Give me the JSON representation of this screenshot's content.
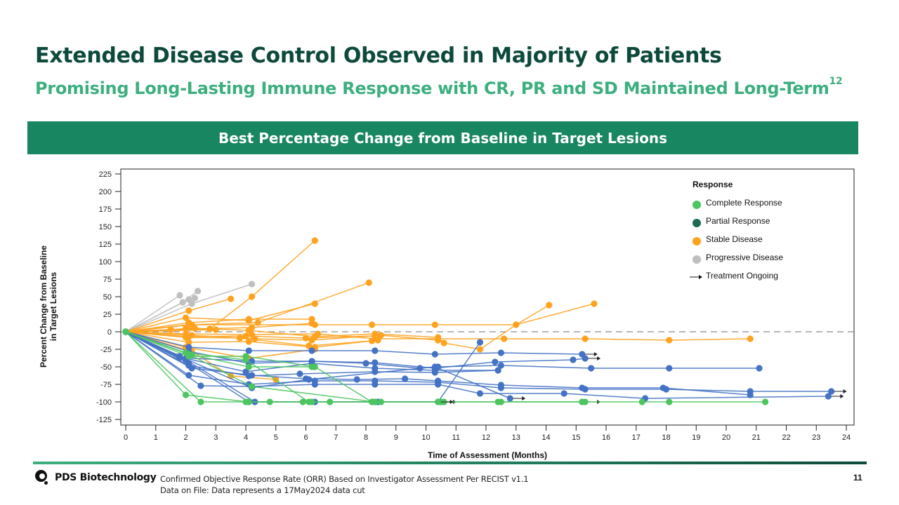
{
  "slide": {
    "title": "Extended Disease Control Observed in Majority of Patients",
    "subtitle": "Promising Long-Lasting Immune Response with CR, PR and SD Maintained Long-Term",
    "subtitle_superscript": "12",
    "banner": "Best Percentage Change from Baseline in Target Lesions",
    "footnote_1": "Confirmed Objective Response Rate (ORR) Based on Investigator Assessment Per RECIST v1.1",
    "footnote_2": "Data on File: Data represents  a 17May2024 data cut",
    "logo_text": "PDS Biotechnology",
    "page_number": "11"
  },
  "colors": {
    "title": "#0d4a3c",
    "subtitle": "#3daf7f",
    "banner": "#188660",
    "complete_response": "#4cc560",
    "partial_response": "#4472c4",
    "partial_response_legend": "#1e6b55",
    "stable_disease": "#ffa21f",
    "progressive_disease": "#bfbfbf",
    "ongoing_arrow": "#222222"
  },
  "chart_data": {
    "type": "line",
    "title": "Best Percentage Change from Baseline in Target Lesions",
    "xlabel": "Time of Assessment  (Months)",
    "ylabel": "Percent Change from Baseline in Target Lesions",
    "xlim": [
      0,
      24
    ],
    "ylim": [
      -125,
      225
    ],
    "xticks": [
      0,
      1,
      2,
      3,
      4,
      5,
      6,
      7,
      8,
      9,
      10,
      11,
      12,
      13,
      14,
      15,
      16,
      17,
      18,
      19,
      20,
      21,
      22,
      23,
      24
    ],
    "yticks": [
      225,
      200,
      175,
      150,
      125,
      100,
      75,
      50,
      25,
      0,
      -25,
      -50,
      -75,
      -100,
      -125
    ],
    "reference_line": {
      "y": 0,
      "style": "dashed"
    },
    "legend": {
      "title": "Response",
      "position": "top-right",
      "entries": [
        {
          "label": "Complete Response",
          "category": "CR"
        },
        {
          "label": "Partial Response",
          "category": "PR"
        },
        {
          "label": "Stable Disease",
          "category": "SD"
        },
        {
          "label": "Progressive Disease",
          "category": "PD"
        },
        {
          "label": "Treatment Ongoing",
          "category": "arrow"
        }
      ]
    },
    "series": [
      {
        "category": "PD",
        "points": [
          [
            0,
            0
          ],
          [
            1.8,
            52
          ]
        ]
      },
      {
        "category": "PD",
        "points": [
          [
            0,
            0
          ],
          [
            1.9,
            42
          ],
          [
            2.4,
            58
          ]
        ]
      },
      {
        "category": "PD",
        "points": [
          [
            0,
            0
          ],
          [
            2.1,
            46
          ],
          [
            2.3,
            48
          ]
        ]
      },
      {
        "category": "PD",
        "points": [
          [
            0,
            0
          ],
          [
            2.2,
            40
          ],
          [
            4.2,
            68
          ]
        ]
      },
      {
        "category": "PD",
        "points": [
          [
            0,
            0
          ],
          [
            2.0,
            -8
          ]
        ]
      },
      {
        "category": "PD",
        "points": [
          [
            0,
            0
          ],
          [
            1.7,
            -35
          ]
        ]
      },
      {
        "category": "SD",
        "points": [
          [
            0,
            0
          ],
          [
            2.8,
            4
          ],
          [
            4.2,
            50
          ],
          [
            6.3,
            130
          ]
        ]
      },
      {
        "category": "SD",
        "points": [
          [
            0,
            0
          ],
          [
            2.1,
            30
          ],
          [
            3.5,
            47
          ]
        ]
      },
      {
        "category": "SD",
        "points": [
          [
            0,
            0
          ],
          [
            2.0,
            20
          ],
          [
            4.1,
            16
          ],
          [
            6.3,
            40
          ]
        ]
      },
      {
        "category": "SD",
        "points": [
          [
            0,
            0
          ],
          [
            2.1,
            10
          ],
          [
            4.4,
            13
          ],
          [
            8.1,
            70
          ]
        ]
      },
      {
        "category": "SD",
        "points": [
          [
            0,
            0
          ],
          [
            2.2,
            10
          ],
          [
            6.3,
            10
          ],
          [
            8.2,
            10
          ],
          [
            10.3,
            10
          ],
          [
            13.0,
            10
          ],
          [
            15.6,
            40
          ]
        ]
      },
      {
        "category": "SD",
        "points": [
          [
            0,
            0
          ],
          [
            2.1,
            13
          ],
          [
            4.1,
            18
          ],
          [
            6.2,
            18
          ]
        ]
      },
      {
        "category": "SD",
        "points": [
          [
            0,
            0
          ],
          [
            1.5,
            3
          ],
          [
            4.2,
            6
          ],
          [
            6.2,
            12
          ]
        ]
      },
      {
        "category": "SD",
        "points": [
          [
            0,
            0
          ],
          [
            2.3,
            5
          ],
          [
            4.1,
            2
          ],
          [
            6.3,
            -7
          ],
          [
            8.3,
            -3
          ],
          [
            10.4,
            -8
          ],
          [
            10.6,
            -16
          ],
          [
            11.8,
            -25
          ],
          [
            13.0,
            10
          ],
          [
            14.1,
            38
          ]
        ]
      },
      {
        "category": "SD",
        "points": [
          [
            0,
            0
          ],
          [
            2.0,
            -3
          ],
          [
            4.2,
            -4
          ],
          [
            6.4,
            -3
          ],
          [
            8.3,
            -10
          ],
          [
            12.6,
            -10
          ],
          [
            15.3,
            -10
          ],
          [
            18.1,
            -12
          ],
          [
            20.8,
            -10
          ]
        ]
      },
      {
        "category": "SD",
        "points": [
          [
            0,
            0
          ],
          [
            2.2,
            -5
          ],
          [
            4.3,
            -10
          ],
          [
            6.2,
            -12
          ],
          [
            8.5,
            -5
          ],
          [
            10.4,
            -12
          ]
        ]
      },
      {
        "category": "SD",
        "points": [
          [
            0,
            0
          ],
          [
            2.1,
            -7
          ],
          [
            4.0,
            -6
          ],
          [
            6.0,
            -9
          ],
          [
            8.3,
            -6
          ]
        ]
      },
      {
        "category": "SD",
        "points": [
          [
            0,
            0
          ],
          [
            2.0,
            -8
          ],
          [
            3.8,
            -9
          ],
          [
            6.1,
            -20
          ],
          [
            8.2,
            -13
          ]
        ]
      },
      {
        "category": "SD",
        "points": [
          [
            0,
            0
          ],
          [
            2.1,
            -15
          ],
          [
            4.1,
            -14
          ],
          [
            6.3,
            -22
          ],
          [
            8.4,
            -12
          ]
        ]
      },
      {
        "category": "SD",
        "points": [
          [
            0,
            0
          ],
          [
            2.0,
            -22
          ],
          [
            4.1,
            -38
          ],
          [
            6.3,
            -25
          ]
        ]
      },
      {
        "category": "SD",
        "points": [
          [
            0,
            0
          ],
          [
            2.2,
            -28
          ],
          [
            3.5,
            -63
          ],
          [
            5.0,
            -68
          ]
        ]
      },
      {
        "category": "SD",
        "points": [
          [
            0,
            0
          ],
          [
            3.0,
            3
          ],
          [
            2.0,
            5
          ]
        ]
      },
      {
        "category": "PR",
        "points": [
          [
            0,
            0
          ],
          [
            2.1,
            -22
          ],
          [
            4.1,
            -27
          ],
          [
            6.2,
            -27
          ],
          [
            8.3,
            -27
          ],
          [
            10.3,
            -32
          ],
          [
            12.5,
            -30
          ],
          [
            15.2,
            -32
          ]
        ],
        "ongoing": true
      },
      {
        "category": "PR",
        "points": [
          [
            0,
            0
          ],
          [
            2.1,
            -28
          ],
          [
            4.1,
            -45
          ],
          [
            6.2,
            -42
          ],
          [
            8.3,
            -44
          ],
          [
            10.3,
            -52
          ],
          [
            12.3,
            -43
          ],
          [
            14.9,
            -40
          ],
          [
            15.3,
            -38
          ]
        ],
        "ongoing": true
      },
      {
        "category": "PR",
        "points": [
          [
            0,
            0
          ],
          [
            1.8,
            -37
          ],
          [
            4.2,
            -42
          ],
          [
            6.2,
            -42
          ],
          [
            8.0,
            -45
          ],
          [
            9.8,
            -52
          ],
          [
            10.4,
            -50
          ],
          [
            12.5,
            -48
          ],
          [
            15.5,
            -52
          ],
          [
            18.1,
            -52
          ],
          [
            21.1,
            -52
          ]
        ]
      },
      {
        "category": "PR",
        "points": [
          [
            0,
            0
          ],
          [
            2.0,
            -38
          ],
          [
            4.0,
            -57
          ],
          [
            6.2,
            -45
          ],
          [
            8.3,
            -52
          ],
          [
            10.3,
            -55
          ],
          [
            12.4,
            -55
          ]
        ]
      },
      {
        "category": "PR",
        "points": [
          [
            0,
            0
          ],
          [
            2.1,
            -48
          ],
          [
            4.1,
            -63
          ],
          [
            5.8,
            -60
          ],
          [
            8.3,
            -57
          ],
          [
            10.3,
            -58
          ],
          [
            12.4,
            -55
          ]
        ]
      },
      {
        "category": "PR",
        "points": [
          [
            0,
            0
          ],
          [
            2.2,
            -52
          ],
          [
            4.2,
            -62
          ],
          [
            6.0,
            -67
          ],
          [
            7.7,
            -68
          ],
          [
            9.3,
            -67
          ],
          [
            10.4,
            -70
          ],
          [
            12.5,
            -76
          ],
          [
            15.2,
            -80
          ],
          [
            17.9,
            -80
          ],
          [
            20.8,
            -90
          ]
        ]
      },
      {
        "category": "PR",
        "points": [
          [
            0,
            0
          ],
          [
            2.1,
            -62
          ],
          [
            4.1,
            -75
          ],
          [
            6.3,
            -70
          ],
          [
            8.3,
            -70
          ],
          [
            10.4,
            -72
          ],
          [
            12.5,
            -80
          ],
          [
            15.3,
            -82
          ],
          [
            18.0,
            -82
          ],
          [
            20.8,
            -85
          ],
          [
            23.5,
            -85
          ]
        ],
        "ongoing": true
      },
      {
        "category": "PR",
        "points": [
          [
            0,
            0
          ],
          [
            2.5,
            -77
          ],
          [
            4.2,
            -78
          ],
          [
            6.3,
            -75
          ],
          [
            8.3,
            -75
          ],
          [
            10.4,
            -75
          ],
          [
            11.8,
            -88
          ],
          [
            14.6,
            -88
          ],
          [
            17.3,
            -95
          ],
          [
            23.4,
            -92
          ]
        ],
        "ongoing": true
      },
      {
        "category": "PR",
        "points": [
          [
            0,
            0
          ],
          [
            1.8,
            -35
          ],
          [
            4.2,
            -80
          ],
          [
            6.1,
            -68
          ],
          [
            10.3,
            -50
          ],
          [
            12.8,
            -95
          ]
        ],
        "ongoing": true
      },
      {
        "category": "PR",
        "points": [
          [
            0,
            0
          ],
          [
            2.0,
            -40
          ],
          [
            4.3,
            -100
          ],
          [
            8.4,
            -100
          ],
          [
            10.4,
            -100
          ],
          [
            11.8,
            -15
          ]
        ]
      },
      {
        "category": "PR",
        "points": [
          [
            0,
            0
          ],
          [
            2.1,
            -45
          ],
          [
            4.1,
            -100
          ],
          [
            6.3,
            -100
          ],
          [
            8.3,
            -100
          ],
          [
            10.5,
            -100
          ]
        ],
        "ongoing": true
      },
      {
        "category": "CR",
        "points": [
          [
            0,
            0
          ],
          [
            2.0,
            -90
          ],
          [
            4.1,
            -100
          ],
          [
            4.8,
            -100
          ],
          [
            6.2,
            -100
          ],
          [
            6.8,
            -100
          ]
        ]
      },
      {
        "category": "CR",
        "points": [
          [
            0,
            0
          ],
          [
            2.5,
            -100
          ],
          [
            4.0,
            -100
          ],
          [
            5.9,
            -100
          ],
          [
            8.2,
            -100
          ],
          [
            8.5,
            -100
          ]
        ]
      },
      {
        "category": "CR",
        "points": [
          [
            0,
            0
          ],
          [
            2.1,
            -35
          ],
          [
            4.0,
            -35
          ],
          [
            6.3,
            -50
          ],
          [
            8.2,
            -100
          ],
          [
            10.6,
            -100
          ],
          [
            12.5,
            -100
          ],
          [
            15.3,
            -100
          ]
        ],
        "ongoing": true
      },
      {
        "category": "CR",
        "points": [
          [
            0,
            0
          ],
          [
            2.2,
            -33
          ],
          [
            4.1,
            -50
          ],
          [
            6.2,
            -50
          ]
        ]
      },
      {
        "category": "CR",
        "points": [
          [
            0,
            0
          ],
          [
            2.0,
            -30
          ],
          [
            4.0,
            -40
          ],
          [
            6.1,
            -100
          ],
          [
            10.5,
            -100
          ],
          [
            12.4,
            -100
          ],
          [
            15.2,
            -100
          ],
          [
            17.2,
            -100
          ],
          [
            18.1,
            -100
          ],
          [
            21.3,
            -100
          ]
        ]
      },
      {
        "category": "CR",
        "points": [
          [
            0,
            0
          ],
          [
            2.1,
            -32
          ],
          [
            4.2,
            -78
          ],
          [
            8.3,
            -100
          ],
          [
            10.4,
            -100
          ]
        ],
        "ongoing": true
      }
    ]
  }
}
